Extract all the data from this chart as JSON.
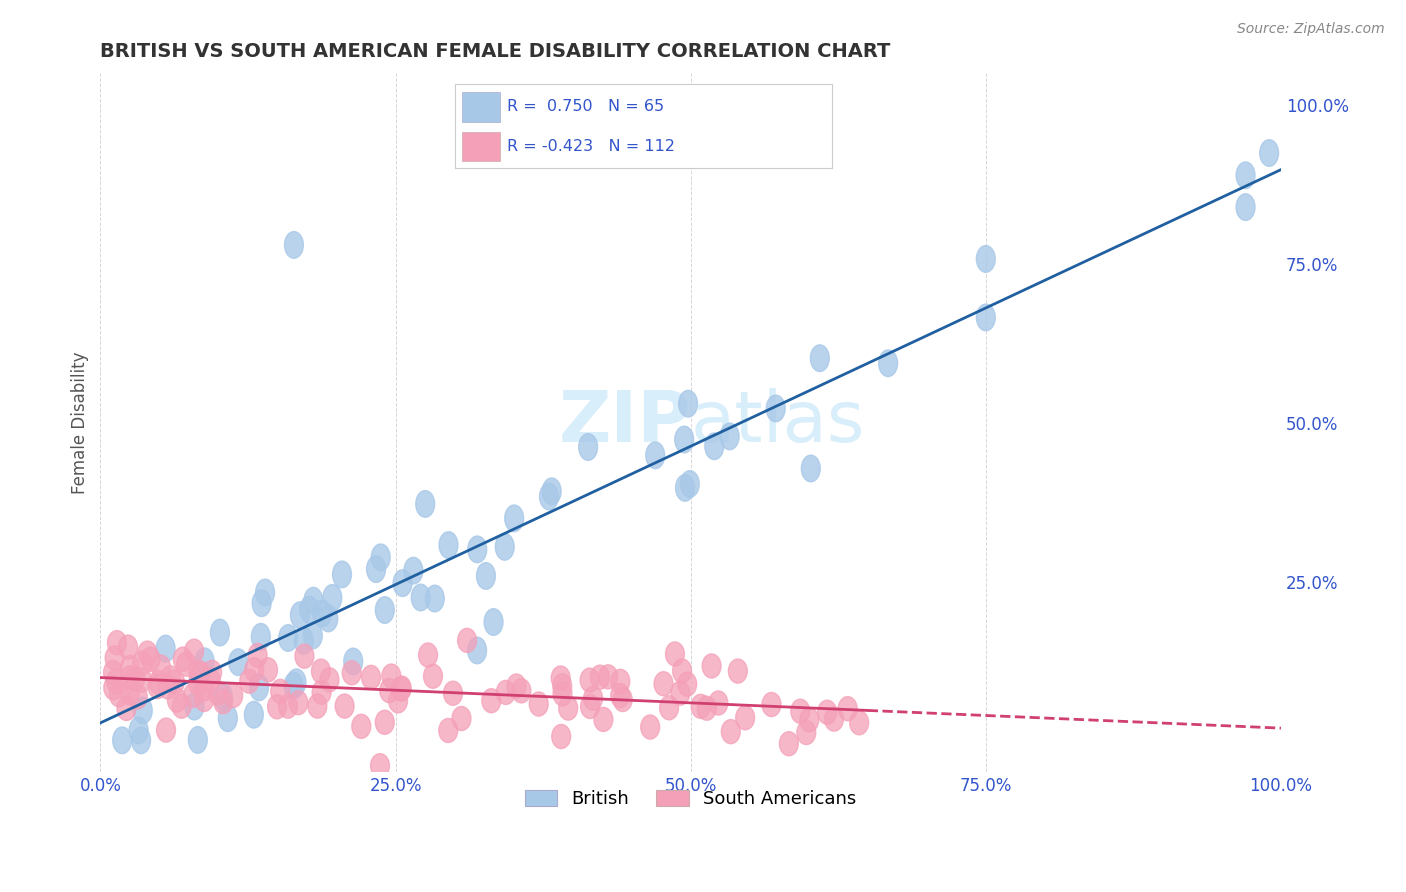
{
  "title": "BRITISH VS SOUTH AMERICAN FEMALE DISABILITY CORRELATION CHART",
  "source": "Source: ZipAtlas.com",
  "ylabel": "Female Disability",
  "xlim": [
    0.0,
    1.0
  ],
  "ylim": [
    -0.05,
    1.05
  ],
  "british_R": 0.75,
  "british_N": 65,
  "south_american_R": -0.423,
  "south_american_N": 112,
  "british_color": "#A8C8E8",
  "british_line_color": "#2060A0",
  "south_american_color": "#F4A0B8",
  "south_american_line_color": "#D04070",
  "background_color": "#FFFFFF",
  "grid_color": "#CCCCCC",
  "watermark_color": "#D8EEFA",
  "title_color": "#333333",
  "legend_text_color": "#3355CC",
  "axis_label_color": "#3355CC",
  "xtick_labels": [
    "0.0%",
    "25.0%",
    "50.0%",
    "75.0%",
    "100.0%"
  ],
  "xtick_positions": [
    0.0,
    0.25,
    0.5,
    0.75,
    1.0
  ],
  "ytick_right_labels": [
    "25.0%",
    "50.0%",
    "75.0%",
    "100.0%"
  ],
  "ytick_right_positions": [
    0.25,
    0.5,
    0.75,
    1.0
  ]
}
